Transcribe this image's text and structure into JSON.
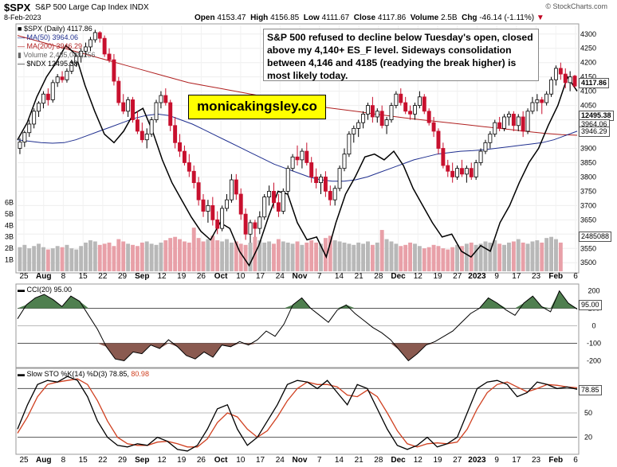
{
  "header": {
    "symbol": "$SPX",
    "name": "S&P 500 Large Cap Index INDX",
    "date": "8-Feb-2023",
    "brand": "© StockCharts.com",
    "ohlc": {
      "open_label": "Open",
      "open": "4153.47",
      "high_label": "High",
      "high": "4156.85",
      "low_label": "Low",
      "low": "4111.67",
      "close_label": "Close",
      "close": "4117.86",
      "volume_label": "Volume",
      "volume": "2.5B",
      "chg_label": "Chg",
      "chg": "-46.14 (-1.11%)"
    }
  },
  "legend": {
    "spx": "$SPX (Daily) 4117.86",
    "ma50": "MA(50) 3964.06",
    "ma200": "MA(200) 3946.29",
    "volume": "Volume 2,485,088,256",
    "ndx": "$NDX 12495.38"
  },
  "annotation": {
    "text": "S&P 500 refused to decline below Tuesday's open, closed above my 4,140+ ES_F level. Sideways consolidation between 4,146 and 4185 (readying the break higher) is most likely today.",
    "brand_text": "monicakingsley.co"
  },
  "value_tags": {
    "price": "4117.86",
    "ndx": "12495.38",
    "ma50": "3964.06",
    "ma200": "3946.29",
    "volume": "2485088",
    "cci": "95.00",
    "sto": "78.85"
  },
  "panels": {
    "cci_label": "CCI(20) 95.00",
    "sto_label": "Slow STO %K(14) %D(3) 78.85,",
    "sto_d_value": "80.98"
  },
  "colors": {
    "up": "#000000",
    "down": "#c8102e",
    "ma50": "#1f2f8f",
    "ma200": "#b02020",
    "ndx": "#000000",
    "vol_up": "#b8b8b8",
    "vol_down": "#e8a0a8",
    "cci_pos_fill": "#4f7f4f",
    "cci_neg_fill": "#8a5a50",
    "sto_k": "#000000",
    "sto_d": "#d04020"
  },
  "chart_data": {
    "type": "candlestick",
    "price_axis": {
      "ticks": [
        "4300",
        "4250",
        "4200",
        "4150",
        "4100",
        "4050",
        "4000",
        "3950",
        "3900",
        "3850",
        "3800",
        "3750",
        "3700",
        "3650",
        "3600",
        "3550",
        "3500"
      ],
      "range": [
        3470,
        4330
      ]
    },
    "volume_axis": {
      "ticks": [
        "6B",
        "5B",
        "4B",
        "3B",
        "2B",
        "1B"
      ],
      "range": [
        0,
        7
      ]
    },
    "x_tick_labels": [
      "25",
      "Aug",
      "8",
      "15",
      "22",
      "29",
      "Sep",
      "12",
      "19",
      "26",
      "Oct",
      "10",
      "17",
      "24",
      "Nov",
      "7",
      "14",
      "21",
      "28",
      "Dec",
      "12",
      "19",
      "27",
      "2023",
      "9",
      "17",
      "23",
      "Feb",
      "6"
    ],
    "candles": [
      [
        3900,
        3936,
        3880,
        3922
      ],
      [
        3922,
        3962,
        3905,
        3955
      ],
      [
        3955,
        4000,
        3940,
        3985
      ],
      [
        3985,
        4040,
        3970,
        4030
      ],
      [
        4030,
        4065,
        4010,
        4058
      ],
      [
        4058,
        4100,
        4040,
        4090
      ],
      [
        4090,
        4110,
        4050,
        4070
      ],
      [
        4070,
        4140,
        4060,
        4130
      ],
      [
        4130,
        4160,
        4115,
        4150
      ],
      [
        4150,
        4170,
        4130,
        4140
      ],
      [
        4140,
        4180,
        4130,
        4170
      ],
      [
        4170,
        4210,
        4160,
        4200
      ],
      [
        4200,
        4230,
        4185,
        4222
      ],
      [
        4222,
        4250,
        4200,
        4240
      ],
      [
        4240,
        4270,
        4220,
        4255
      ],
      [
        4255,
        4290,
        4240,
        4280
      ],
      [
        4280,
        4315,
        4270,
        4305
      ],
      [
        4305,
        4310,
        4270,
        4285
      ],
      [
        4285,
        4295,
        4220,
        4230
      ],
      [
        4230,
        4250,
        4200,
        4210
      ],
      [
        4210,
        4230,
        4120,
        4135
      ],
      [
        4135,
        4150,
        4050,
        4060
      ],
      [
        4060,
        4090,
        4020,
        4030
      ],
      [
        4030,
        4080,
        4010,
        4070
      ],
      [
        4070,
        4080,
        3990,
        4000
      ],
      [
        4000,
        4030,
        3950,
        3960
      ],
      [
        3960,
        3990,
        3920,
        3930
      ],
      [
        3930,
        3970,
        3900,
        3950
      ],
      [
        3950,
        4010,
        3940,
        4000
      ],
      [
        4000,
        4070,
        3990,
        4060
      ],
      [
        4060,
        4100,
        4040,
        4085
      ],
      [
        4085,
        4110,
        4050,
        4060
      ],
      [
        4060,
        4070,
        3960,
        3980
      ],
      [
        3980,
        4010,
        3900,
        3920
      ],
      [
        3920,
        3950,
        3870,
        3890
      ],
      [
        3890,
        3910,
        3840,
        3850
      ],
      [
        3850,
        3880,
        3800,
        3820
      ],
      [
        3820,
        3840,
        3760,
        3780
      ],
      [
        3780,
        3800,
        3700,
        3720
      ],
      [
        3720,
        3740,
        3660,
        3680
      ],
      [
        3680,
        3720,
        3640,
        3700
      ],
      [
        3700,
        3730,
        3630,
        3650
      ],
      [
        3650,
        3680,
        3600,
        3620
      ],
      [
        3620,
        3700,
        3610,
        3690
      ],
      [
        3690,
        3740,
        3680,
        3720
      ],
      [
        3720,
        3810,
        3710,
        3790
      ],
      [
        3790,
        3810,
        3720,
        3740
      ],
      [
        3740,
        3760,
        3650,
        3670
      ],
      [
        3670,
        3690,
        3580,
        3600
      ],
      [
        3600,
        3650,
        3570,
        3640
      ],
      [
        3640,
        3650,
        3590,
        3620
      ],
      [
        3620,
        3680,
        3600,
        3660
      ],
      [
        3660,
        3740,
        3650,
        3730
      ],
      [
        3730,
        3770,
        3700,
        3750
      ],
      [
        3750,
        3780,
        3690,
        3710
      ],
      [
        3710,
        3740,
        3660,
        3680
      ],
      [
        3680,
        3760,
        3670,
        3750
      ],
      [
        3750,
        3840,
        3740,
        3830
      ],
      [
        3830,
        3880,
        3820,
        3870
      ],
      [
        3870,
        3910,
        3840,
        3860
      ],
      [
        3860,
        3900,
        3830,
        3890
      ],
      [
        3890,
        3920,
        3840,
        3850
      ],
      [
        3850,
        3870,
        3780,
        3800
      ],
      [
        3800,
        3830,
        3760,
        3780
      ],
      [
        3780,
        3810,
        3740,
        3800
      ],
      [
        3800,
        3820,
        3730,
        3750
      ],
      [
        3750,
        3770,
        3700,
        3720
      ],
      [
        3720,
        3770,
        3700,
        3760
      ],
      [
        3760,
        3840,
        3750,
        3830
      ],
      [
        3830,
        3900,
        3820,
        3880
      ],
      [
        3880,
        3960,
        3870,
        3950
      ],
      [
        3950,
        3980,
        3920,
        3970
      ],
      [
        3970,
        4000,
        3940,
        3990
      ],
      [
        3990,
        4030,
        3970,
        4020
      ],
      [
        4020,
        4060,
        4000,
        4050
      ],
      [
        4050,
        4080,
        3990,
        4010
      ],
      [
        4010,
        4040,
        3990,
        4030
      ],
      [
        4030,
        4050,
        3970,
        3980
      ],
      [
        3980,
        4010,
        3950,
        4000
      ],
      [
        4000,
        4060,
        3990,
        4050
      ],
      [
        4050,
        4100,
        4040,
        4090
      ],
      [
        4090,
        4110,
        4050,
        4060
      ],
      [
        4060,
        4080,
        4020,
        4030
      ],
      [
        4030,
        4050,
        4000,
        4020
      ],
      [
        4020,
        4060,
        4000,
        4050
      ],
      [
        4050,
        4100,
        4040,
        4080
      ],
      [
        4080,
        4090,
        4020,
        4030
      ],
      [
        4030,
        4040,
        3980,
        3990
      ],
      [
        3990,
        4010,
        3940,
        3960
      ],
      [
        3960,
        3970,
        3880,
        3900
      ],
      [
        3900,
        3920,
        3830,
        3840
      ],
      [
        3840,
        3860,
        3800,
        3820
      ],
      [
        3820,
        3850,
        3780,
        3800
      ],
      [
        3800,
        3840,
        3790,
        3830
      ],
      [
        3830,
        3860,
        3800,
        3810
      ],
      [
        3810,
        3840,
        3780,
        3830
      ],
      [
        3830,
        3850,
        3790,
        3800
      ],
      [
        3800,
        3860,
        3790,
        3850
      ],
      [
        3850,
        3900,
        3840,
        3890
      ],
      [
        3890,
        3930,
        3880,
        3920
      ],
      [
        3920,
        3960,
        3900,
        3950
      ],
      [
        3950,
        4000,
        3940,
        3990
      ],
      [
        3990,
        4010,
        3960,
        3970
      ],
      [
        3970,
        4020,
        3960,
        4010
      ],
      [
        4010,
        4030,
        3980,
        4020
      ],
      [
        4020,
        4030,
        3960,
        3980
      ],
      [
        3980,
        4020,
        3960,
        4010
      ],
      [
        4010,
        4030,
        3940,
        3960
      ],
      [
        3960,
        4040,
        3950,
        4030
      ],
      [
        4030,
        4080,
        4020,
        4060
      ],
      [
        4060,
        4090,
        4030,
        4070
      ],
      [
        4070,
        4080,
        4020,
        4060
      ],
      [
        4060,
        4100,
        4050,
        4090
      ],
      [
        4090,
        4150,
        4080,
        4140
      ],
      [
        4140,
        4190,
        4120,
        4180
      ],
      [
        4180,
        4200,
        4140,
        4160
      ],
      [
        4160,
        4180,
        4110,
        4130
      ],
      [
        4130,
        4170,
        4100,
        4150
      ],
      [
        4153,
        4157,
        4112,
        4118
      ]
    ],
    "ma50": [
      3930,
      3925,
      3920,
      3918,
      3920,
      3930,
      3945,
      3960,
      3975,
      3990,
      4005,
      4015,
      4020,
      4015,
      4000,
      3985,
      3965,
      3945,
      3925,
      3905,
      3885,
      3865,
      3845,
      3830,
      3815,
      3800,
      3790,
      3785,
      3785,
      3790,
      3800,
      3815,
      3830,
      3845,
      3860,
      3870,
      3880,
      3885,
      3890,
      3892,
      3895,
      3900,
      3905,
      3910,
      3915,
      3920,
      3930,
      3945,
      3960
    ],
    "ma200": [
      4295,
      4280,
      4265,
      4250,
      4235,
      4220,
      4205,
      4190,
      4175,
      4160,
      4145,
      4130,
      4120,
      4110,
      4100,
      4090,
      4080,
      4070,
      4060,
      4050,
      4042,
      4035,
      4028,
      4020,
      4013,
      4006,
      4000,
      3994,
      3988,
      3982,
      3976,
      3970,
      3964,
      3958,
      3952,
      3948,
      3946
    ],
    "ndx_overlay": [
      3930,
      3990,
      4080,
      4150,
      4200,
      4260,
      4230,
      4120,
      4030,
      3950,
      3920,
      3960,
      4020,
      4040,
      3960,
      3860,
      3780,
      3720,
      3660,
      3610,
      3580,
      3640,
      3620,
      3540,
      3490,
      3560,
      3660,
      3750,
      3740,
      3640,
      3580,
      3590,
      3520,
      3640,
      3740,
      3800,
      3870,
      3880,
      3860,
      3890,
      3840,
      3760,
      3700,
      3640,
      3590,
      3600,
      3540,
      3520,
      3560,
      3540,
      3640,
      3700,
      3780,
      3850,
      3900,
      3980,
      4050,
      4150,
      4100
    ],
    "volume": [
      2.1,
      2.3,
      2.0,
      2.2,
      2.4,
      2.1,
      1.9,
      2.0,
      2.2,
      2.1,
      2.3,
      2.0,
      1.9,
      2.2,
      2.5,
      2.7,
      2.6,
      2.3,
      2.4,
      2.5,
      2.2,
      2.8,
      2.6,
      2.4,
      2.3,
      2.2,
      2.5,
      2.6,
      2.4,
      2.3,
      2.5,
      2.7,
      2.9,
      3.0,
      2.8,
      2.6,
      2.5,
      3.8,
      2.9,
      2.6,
      2.8,
      3.1,
      2.7,
      2.6,
      2.8,
      2.5,
      2.6,
      2.4,
      2.3,
      2.5,
      3.0,
      2.7,
      2.5,
      2.6,
      2.4,
      2.8,
      2.6,
      2.5,
      2.4,
      2.6,
      2.3,
      2.5,
      2.7,
      2.5,
      2.4,
      2.9,
      3.1,
      2.7,
      2.6,
      2.5,
      2.4,
      2.3,
      2.5,
      2.4,
      2.6,
      2.3,
      2.5,
      3.6,
      2.8,
      2.6,
      2.4,
      2.2,
      2.3,
      2.5,
      2.4,
      2.2,
      2.0,
      2.1,
      2.3,
      2.2,
      2.0,
      1.9,
      2.1,
      2.3,
      2.2,
      2.4,
      2.5,
      2.3,
      2.4,
      2.6,
      2.5,
      2.7,
      2.4,
      2.3,
      2.5,
      2.6,
      2.8,
      2.5,
      2.4,
      2.6,
      2.7,
      2.5,
      2.9,
      3.0,
      2.8,
      2.5
    ],
    "cci": {
      "range": [
        -230,
        230
      ],
      "ticks": [
        "200",
        "100",
        "0",
        "-100",
        "-200"
      ],
      "values": [
        40,
        120,
        160,
        180,
        150,
        110,
        170,
        140,
        60,
        -20,
        -120,
        -190,
        -200,
        -150,
        -160,
        -110,
        -130,
        -80,
        -120,
        -170,
        -190,
        -150,
        -180,
        -110,
        -120,
        -90,
        -110,
        -80,
        -30,
        -60,
        10,
        120,
        160,
        100,
        60,
        20,
        90,
        120,
        70,
        30,
        -10,
        -40,
        -80,
        -140,
        -200,
        -160,
        -110,
        -90,
        -60,
        -30,
        20,
        70,
        100,
        160,
        130,
        90,
        60,
        130,
        170,
        110,
        80,
        200,
        130,
        95
      ]
    },
    "sto": {
      "range": [
        0,
        100
      ],
      "ticks": [
        "80",
        "50",
        "20"
      ],
      "k": [
        30,
        60,
        85,
        90,
        88,
        95,
        90,
        70,
        40,
        20,
        10,
        8,
        12,
        10,
        20,
        15,
        5,
        3,
        10,
        30,
        55,
        60,
        30,
        10,
        20,
        40,
        60,
        85,
        90,
        88,
        80,
        90,
        75,
        60,
        85,
        80,
        55,
        30,
        10,
        5,
        10,
        20,
        8,
        12,
        20,
        50,
        80,
        88,
        90,
        85,
        70,
        75,
        88,
        85,
        80,
        82,
        79
      ],
      "d": [
        25,
        45,
        70,
        85,
        88,
        90,
        92,
        85,
        65,
        40,
        20,
        12,
        10,
        10,
        14,
        15,
        12,
        8,
        8,
        18,
        38,
        50,
        45,
        30,
        20,
        28,
        45,
        65,
        80,
        88,
        85,
        85,
        82,
        72,
        70,
        78,
        70,
        50,
        28,
        12,
        8,
        12,
        13,
        12,
        14,
        30,
        55,
        75,
        85,
        88,
        82,
        76,
        80,
        85,
        84,
        82,
        80.98
      ]
    }
  }
}
